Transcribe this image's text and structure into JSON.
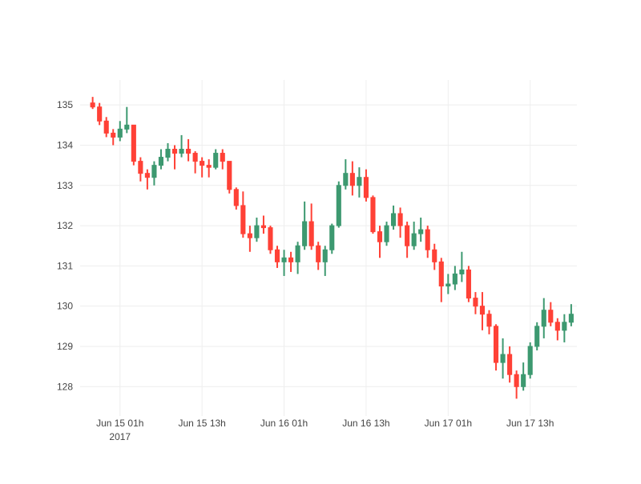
{
  "chart_data": {
    "type": "candlestick",
    "title": "",
    "xlabel": "",
    "ylabel": "",
    "x_start": "2017-06-14T21:00",
    "x_interval_hours": 1,
    "xlim": [
      "2017-06-14T19:10",
      "2017-06-17T19:50"
    ],
    "ylim": [
      127.27,
      135.62
    ],
    "grid": true,
    "legend": "none",
    "colors": {
      "increasing": "#3D9970",
      "decreasing": "#FF4136",
      "grid": "#eeeeee"
    },
    "y_ticks": [
      "128",
      "129",
      "130",
      "131",
      "132",
      "133",
      "134",
      "135"
    ],
    "x_ticks": [
      {
        "t": "2017-06-15T01:00",
        "label": "Jun 15 01h",
        "sub": "2017"
      },
      {
        "t": "2017-06-15T13:00",
        "label": "Jun 15 13h",
        "sub": ""
      },
      {
        "t": "2017-06-16T01:00",
        "label": "Jun 16 01h",
        "sub": ""
      },
      {
        "t": "2017-06-16T13:00",
        "label": "Jun 16 13h",
        "sub": ""
      },
      {
        "t": "2017-06-17T01:00",
        "label": "Jun 17 01h",
        "sub": ""
      },
      {
        "t": "2017-06-17T13:00",
        "label": "Jun 17 13h",
        "sub": ""
      }
    ],
    "ohlc": [
      [
        135.05,
        135.2,
        134.9,
        134.95
      ],
      [
        134.95,
        135.05,
        134.5,
        134.6
      ],
      [
        134.6,
        134.7,
        134.2,
        134.3
      ],
      [
        134.3,
        134.4,
        134.0,
        134.2
      ],
      [
        134.2,
        134.6,
        134.1,
        134.4
      ],
      [
        134.4,
        134.95,
        134.3,
        134.5
      ],
      [
        134.5,
        134.5,
        133.5,
        133.6
      ],
      [
        133.6,
        133.7,
        133.1,
        133.3
      ],
      [
        133.3,
        133.4,
        132.9,
        133.2
      ],
      [
        133.2,
        133.6,
        133.0,
        133.5
      ],
      [
        133.5,
        133.9,
        133.4,
        133.7
      ],
      [
        133.7,
        134.05,
        133.6,
        133.9
      ],
      [
        133.9,
        134.0,
        133.4,
        133.8
      ],
      [
        133.8,
        134.25,
        133.7,
        133.9
      ],
      [
        133.9,
        134.15,
        133.6,
        133.8
      ],
      [
        133.8,
        133.85,
        133.3,
        133.6
      ],
      [
        133.6,
        133.7,
        133.2,
        133.5
      ],
      [
        133.5,
        133.65,
        133.2,
        133.45
      ],
      [
        133.45,
        133.9,
        133.4,
        133.8
      ],
      [
        133.8,
        133.9,
        133.4,
        133.6
      ],
      [
        133.6,
        133.6,
        132.8,
        132.9
      ],
      [
        132.9,
        132.95,
        132.4,
        132.5
      ],
      [
        132.5,
        132.85,
        131.7,
        131.8
      ],
      [
        131.8,
        132.0,
        131.35,
        131.7
      ],
      [
        131.7,
        132.2,
        131.6,
        132.0
      ],
      [
        132.0,
        132.25,
        131.8,
        131.95
      ],
      [
        131.95,
        132.0,
        131.3,
        131.4
      ],
      [
        131.4,
        131.5,
        130.95,
        131.1
      ],
      [
        131.1,
        131.4,
        130.75,
        131.2
      ],
      [
        131.2,
        131.35,
        130.85,
        131.1
      ],
      [
        131.1,
        131.6,
        130.8,
        131.5
      ],
      [
        131.5,
        132.6,
        131.4,
        132.1
      ],
      [
        132.1,
        132.55,
        131.4,
        131.5
      ],
      [
        131.5,
        131.6,
        130.9,
        131.1
      ],
      [
        131.1,
        131.5,
        130.75,
        131.4
      ],
      [
        131.4,
        132.05,
        131.3,
        132.0
      ],
      [
        132.0,
        133.1,
        131.95,
        133.0
      ],
      [
        133.0,
        133.65,
        132.9,
        133.3
      ],
      [
        133.3,
        133.6,
        132.75,
        133.0
      ],
      [
        133.0,
        133.45,
        132.7,
        133.2
      ],
      [
        133.2,
        133.4,
        132.6,
        132.7
      ],
      [
        132.7,
        132.75,
        131.8,
        131.85
      ],
      [
        131.85,
        132.0,
        131.2,
        131.6
      ],
      [
        131.6,
        132.1,
        131.5,
        132.0
      ],
      [
        132.0,
        132.5,
        131.9,
        132.3
      ],
      [
        132.3,
        132.45,
        131.7,
        132.0
      ],
      [
        132.0,
        132.1,
        131.2,
        131.5
      ],
      [
        131.5,
        132.1,
        131.4,
        131.8
      ],
      [
        131.8,
        132.2,
        131.6,
        131.9
      ],
      [
        131.9,
        132.0,
        131.2,
        131.4
      ],
      [
        131.4,
        131.55,
        130.9,
        131.1
      ],
      [
        131.1,
        131.2,
        130.1,
        130.5
      ],
      [
        130.5,
        130.8,
        130.3,
        130.55
      ],
      [
        130.55,
        131.0,
        130.4,
        130.8
      ],
      [
        130.8,
        131.35,
        130.6,
        130.9
      ],
      [
        130.9,
        131.0,
        130.1,
        130.2
      ],
      [
        130.2,
        130.35,
        129.8,
        130.0
      ],
      [
        130.0,
        130.35,
        129.4,
        129.8
      ],
      [
        129.8,
        129.9,
        129.3,
        129.5
      ],
      [
        129.5,
        129.55,
        128.4,
        128.6
      ],
      [
        128.6,
        129.2,
        128.2,
        128.8
      ],
      [
        128.8,
        129.0,
        128.1,
        128.3
      ],
      [
        128.3,
        128.4,
        127.7,
        128.0
      ],
      [
        128.0,
        128.6,
        127.9,
        128.3
      ],
      [
        128.3,
        129.1,
        128.2,
        129.0
      ],
      [
        129.0,
        129.6,
        128.9,
        129.5
      ],
      [
        129.5,
        130.2,
        129.2,
        129.9
      ],
      [
        129.9,
        130.1,
        129.5,
        129.6
      ],
      [
        129.6,
        129.7,
        129.15,
        129.4
      ],
      [
        129.4,
        129.8,
        129.1,
        129.6
      ],
      [
        129.6,
        130.05,
        129.5,
        129.8
      ]
    ]
  }
}
